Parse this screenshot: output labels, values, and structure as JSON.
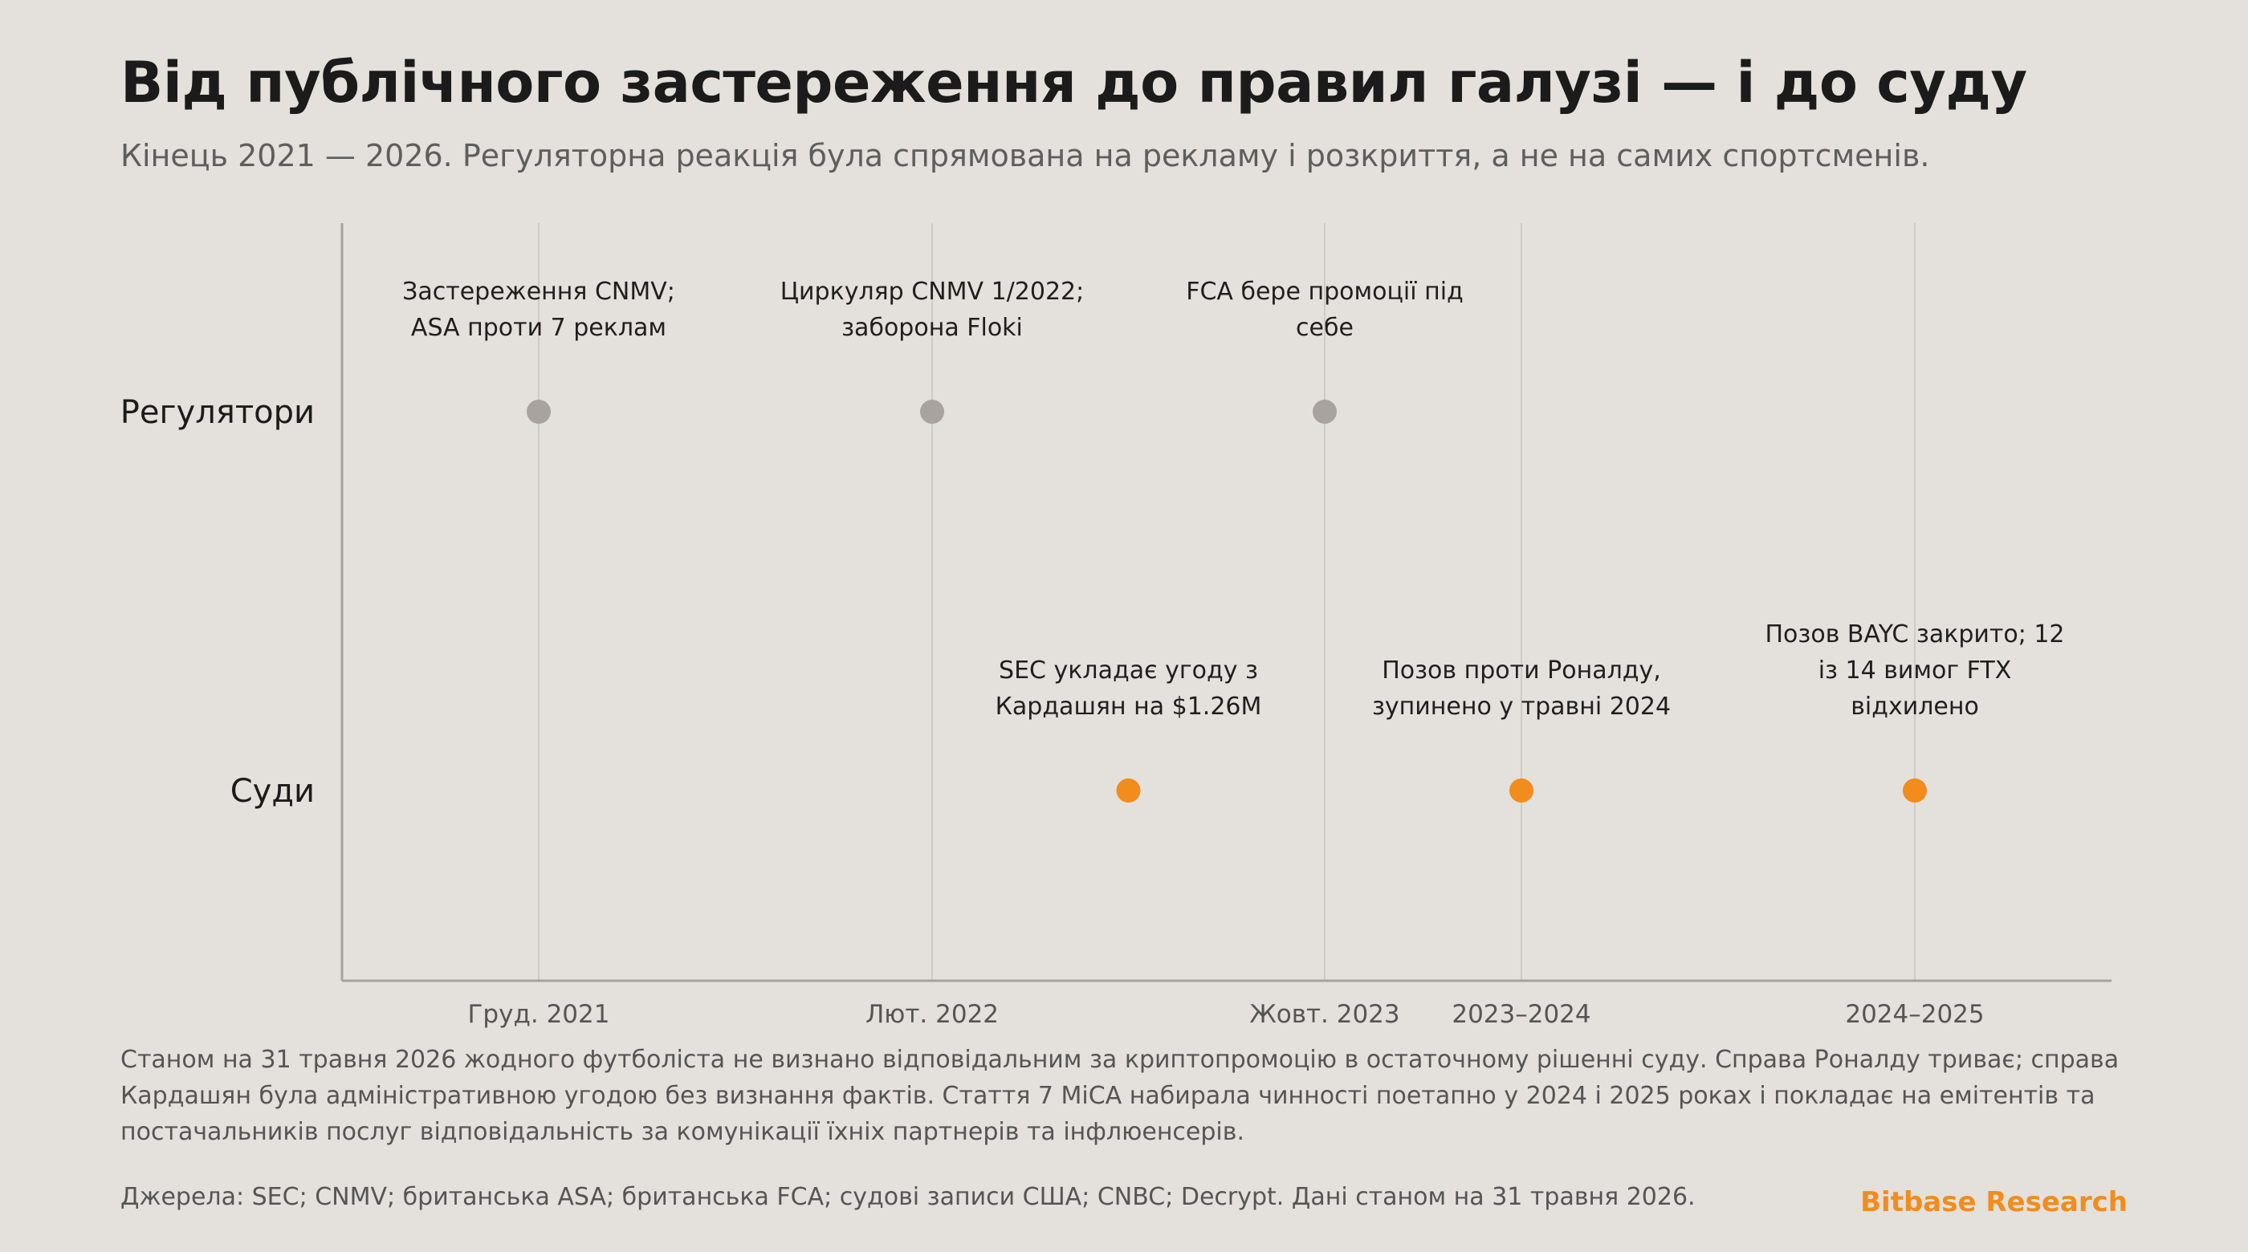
{
  "header": {
    "title": "Від публічного застереження до правил галузі — і до суду",
    "subtitle": "Кінець 2021 — 2026. Регуляторна реакція була спрямована на рекламу і розкриття, а не на самих спортсменів."
  },
  "chart_data": {
    "type": "scatter",
    "title": "Від публічного застереження до правил галузі — і до суду",
    "subtitle": "Кінець 2021 — 2026. Регуляторна реакція була спрямована на рекламу і розкриття, а не на самих спортсменів.",
    "lanes": [
      "Регулятори",
      "Суди"
    ],
    "x_ticks": [
      "Груд. 2021",
      "Лют. 2022",
      "Жовт. 2023",
      "2023–2024",
      "2024–2025"
    ],
    "grid": true,
    "series": [
      {
        "name": "Регулятори",
        "color": "#a8a39e",
        "points": [
          {
            "x": "Груд. 2021",
            "label": [
              "Застереження CNMV;",
              "ASA проти 7 реклам"
            ]
          },
          {
            "x": "Лют. 2022",
            "label": [
              "Циркуляр CNMV 1/2022;",
              "заборона Floki"
            ]
          },
          {
            "x": "Жовт. 2023",
            "label": [
              "FCA бере промоції під",
              "себе"
            ]
          }
        ]
      },
      {
        "name": "Суди",
        "color": "#f28c1c",
        "points": [
          {
            "x": "Лют. 2022–Жовт. 2023",
            "label": [
              "SEC укладає угоду з",
              "Кардашян на $1.26M"
            ]
          },
          {
            "x": "2023–2024",
            "label": [
              "Позов проти Роналду,",
              "зупинено у травні 2024"
            ]
          },
          {
            "x": "2024–2025",
            "label": [
              "Позов BAYC закрито; 12",
              "із 14 вимог FTX",
              "відхилено"
            ]
          }
        ]
      }
    ]
  },
  "footer": {
    "note": "Станом на 31 травня 2026 жодного футболіста не визнано відповідальним за криптопромоцію в остаточному рішенні суду. Справа Роналду триває; справа Кардашян була адміністративною угодою без визнання фактів. Стаття 7 MiCA набирала чинності поетапно у 2024 і 2025 роках і покладає на емітентів та постачальників послуг відповідальність за комунікації їхніх партнерів та інфлюенсерів.",
    "sources": "Джерела: SEC; CNMV; британська ASA; британська FCA; судові записи США; CNBC; Decrypt. Дані станом на 31 травня 2026.",
    "brand": "Bitbase Research"
  }
}
